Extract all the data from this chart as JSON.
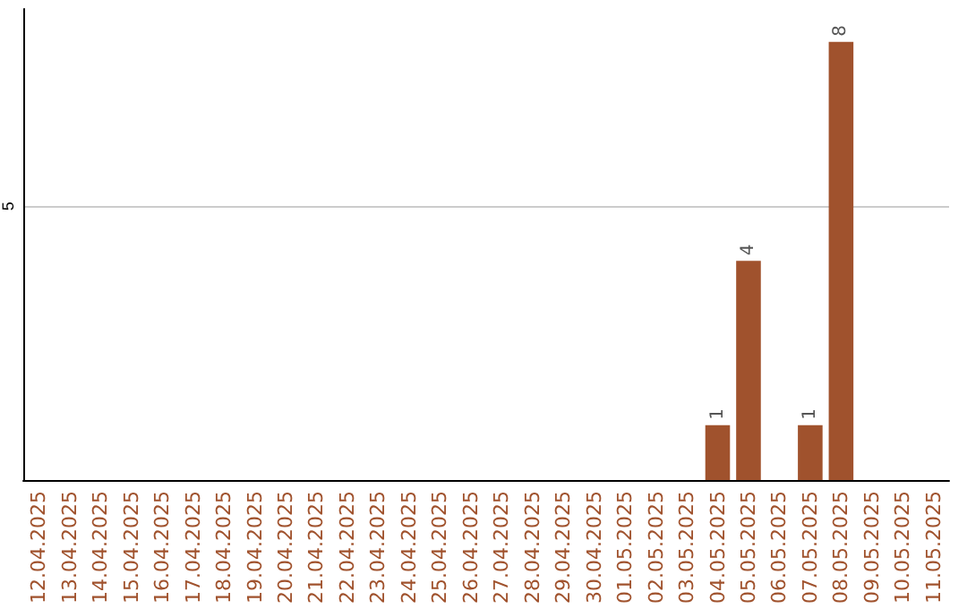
{
  "chart_data": {
    "type": "bar",
    "categories": [
      "12.04.2025",
      "13.04.2025",
      "14.04.2025",
      "15.04.2025",
      "16.04.2025",
      "17.04.2025",
      "18.04.2025",
      "19.04.2025",
      "20.04.2025",
      "21.04.2025",
      "22.04.2025",
      "23.04.2025",
      "24.04.2025",
      "25.04.2025",
      "26.04.2025",
      "27.04.2025",
      "28.04.2025",
      "29.04.2025",
      "30.04.2025",
      "01.05.2025",
      "02.05.2025",
      "03.05.2025",
      "04.05.2025",
      "05.05.2025",
      "06.05.2025",
      "07.05.2025",
      "08.05.2025",
      "09.05.2025",
      "10.05.2025",
      "11.05.2025"
    ],
    "values": [
      null,
      null,
      null,
      null,
      null,
      null,
      null,
      null,
      null,
      null,
      null,
      null,
      null,
      null,
      null,
      null,
      null,
      null,
      null,
      null,
      null,
      null,
      1,
      4,
      null,
      1,
      8,
      null,
      null,
      null
    ],
    "color": "#a0522d",
    "ylim": [
      0,
      8.6
    ],
    "yticks": [
      {
        "value": 0,
        "label": null
      },
      5
    ],
    "grid": "y",
    "data_labels": true
  }
}
